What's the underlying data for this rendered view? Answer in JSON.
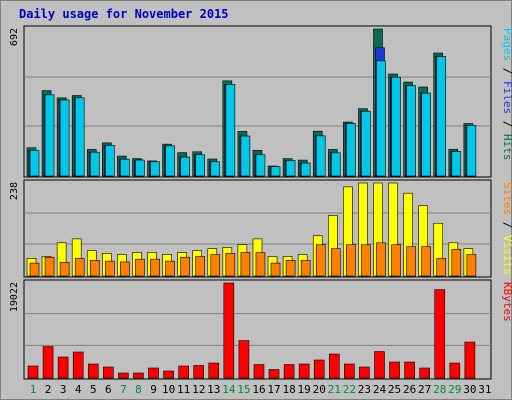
{
  "title": "Daily usage for November 2015",
  "colors": {
    "background": "#c0c0c0",
    "frame": "#000000",
    "pages": "#00c8e6",
    "pages_dark": "#005a6e",
    "files": "#2035d8",
    "hits": "#0a6b52",
    "visits": "#ffff00",
    "sites": "#ff8000",
    "kbytes": "#ff0000",
    "title": "#0000c0",
    "weekend_label": "#00883f"
  },
  "chart_data": [
    {
      "type": "bar",
      "panel": "hits-files-pages",
      "categories": [
        "1",
        "2",
        "3",
        "4",
        "5",
        "6",
        "7",
        "8",
        "9",
        "10",
        "11",
        "12",
        "13",
        "14",
        "15",
        "16",
        "17",
        "18",
        "19",
        "20",
        "21",
        "22",
        "23",
        "24",
        "25",
        "26",
        "27",
        "28",
        "29",
        "30",
        "31"
      ],
      "series": [
        {
          "name": "Hits",
          "values": [
            133,
            402,
            368,
            379,
            125,
            156,
            94,
            82,
            71,
            150,
            110,
            114,
            80,
            448,
            210,
            121,
            47,
            82,
            75,
            211,
            125,
            254,
            317,
            692,
            480,
            442,
            419,
            579,
            126,
            247,
            0
          ]
        },
        {
          "name": "Files",
          "values": [
            121,
            382,
            358,
            368,
            112,
            144,
            79,
            75,
            67,
            142,
            89,
            100,
            67,
            431,
            188,
            100,
            44,
            73,
            61,
            189,
            109,
            247,
            305,
            604,
            465,
            425,
            390,
            562,
            115,
            238,
            0
          ]
        },
        {
          "name": "Pages",
          "values": [
            121,
            382,
            358,
            368,
            112,
            144,
            79,
            75,
            67,
            142,
            89,
            100,
            67,
            431,
            188,
            100,
            44,
            73,
            61,
            189,
            109,
            247,
            305,
            542,
            465,
            425,
            390,
            562,
            115,
            238,
            0
          ]
        }
      ],
      "ymax": 692,
      "ytick_label": "692",
      "right_label": "Pages / Files / Hits"
    },
    {
      "type": "bar",
      "panel": "visits-sites",
      "categories": [
        "1",
        "2",
        "3",
        "4",
        "5",
        "6",
        "7",
        "8",
        "9",
        "10",
        "11",
        "12",
        "13",
        "14",
        "15",
        "16",
        "17",
        "18",
        "19",
        "20",
        "21",
        "22",
        "23",
        "24",
        "25",
        "26",
        "27",
        "28",
        "29",
        "30",
        "31"
      ],
      "series": [
        {
          "name": "Visits",
          "values": [
            45,
            50,
            85,
            95,
            65,
            58,
            55,
            60,
            60,
            55,
            60,
            65,
            70,
            73,
            80,
            95,
            50,
            50,
            55,
            103,
            155,
            228,
            238,
            238,
            238,
            212,
            180,
            135,
            85,
            70,
            0
          ]
        },
        {
          "name": "Sites",
          "values": [
            33,
            48,
            35,
            45,
            40,
            38,
            36,
            43,
            43,
            38,
            48,
            50,
            55,
            58,
            60,
            60,
            33,
            40,
            40,
            80,
            70,
            80,
            80,
            85,
            80,
            75,
            75,
            45,
            68,
            55,
            0
          ]
        }
      ],
      "ymax": 238,
      "ytick_label": "238",
      "right_label": "Sites / Visits"
    },
    {
      "type": "bar",
      "panel": "kbytes",
      "categories": [
        "1",
        "2",
        "3",
        "4",
        "5",
        "6",
        "7",
        "8",
        "9",
        "10",
        "11",
        "12",
        "13",
        "14",
        "15",
        "16",
        "17",
        "18",
        "19",
        "20",
        "21",
        "22",
        "23",
        "24",
        "25",
        "26",
        "27",
        "28",
        "29",
        "30",
        "31"
      ],
      "series": [
        {
          "name": "KBytes",
          "values": [
            2400,
            6300,
            4200,
            5200,
            2800,
            2200,
            1000,
            1000,
            2000,
            1400,
            2400,
            2500,
            3000,
            19022,
            7500,
            2700,
            1700,
            2700,
            2800,
            3600,
            4800,
            2800,
            2200,
            5300,
            3200,
            3200,
            2000,
            17700,
            3000,
            7200,
            0
          ]
        }
      ],
      "ymax": 19022,
      "ytick_label": "19022",
      "right_label": "KBytes"
    }
  ],
  "weekend_days": [
    "1",
    "7",
    "8",
    "14",
    "15",
    "21",
    "22",
    "28",
    "29"
  ]
}
